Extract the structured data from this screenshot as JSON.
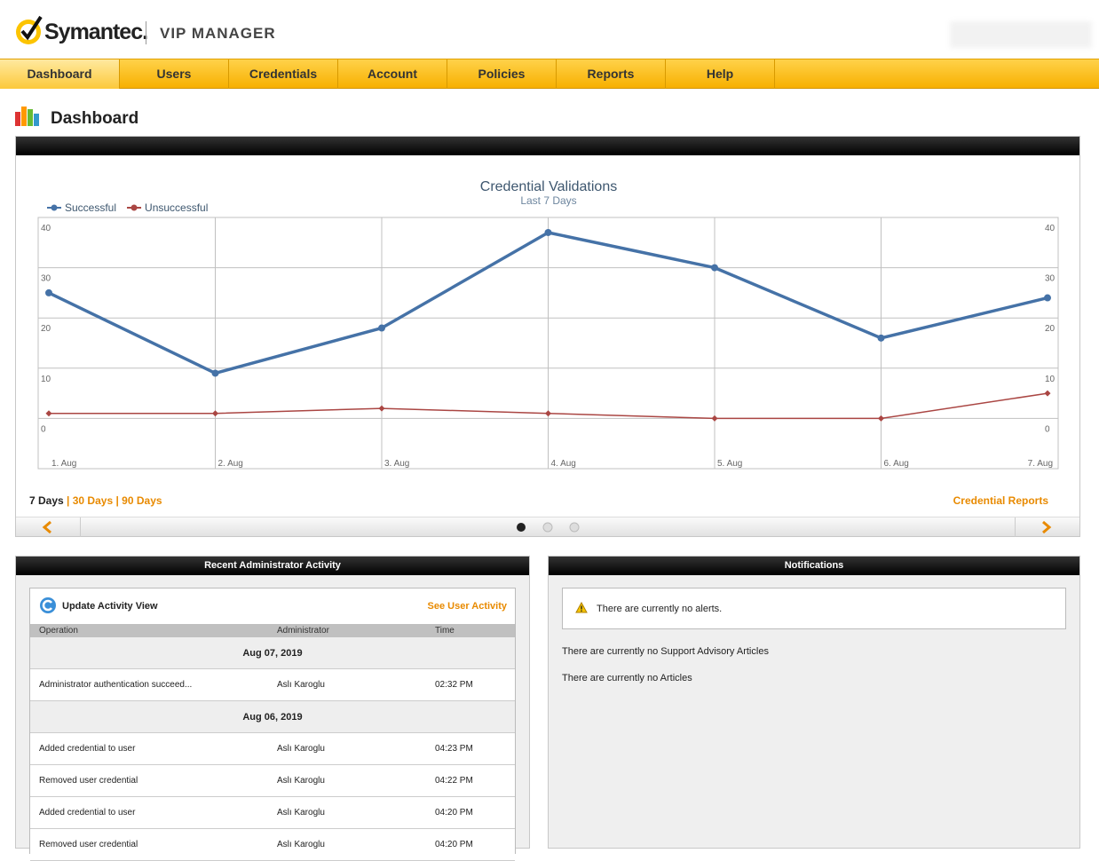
{
  "header": {
    "brand": "Symantec.",
    "product": "VIP MANAGER"
  },
  "nav": [
    "Dashboard",
    "Users",
    "Credentials",
    "Account",
    "Policies",
    "Reports",
    "Help"
  ],
  "page_title": "Dashboard",
  "chart_data": {
    "type": "line",
    "title": "Credential Validations",
    "subtitle": "Last 7 Days",
    "categories": [
      "1. Aug",
      "2. Aug",
      "3. Aug",
      "4. Aug",
      "5. Aug",
      "6. Aug",
      "7. Aug"
    ],
    "series": [
      {
        "name": "Successful",
        "color": "#4572a7",
        "values": [
          25,
          9,
          18,
          37,
          30,
          16,
          24
        ]
      },
      {
        "name": "Unsuccessful",
        "color": "#aa4643",
        "values": [
          1,
          1,
          2,
          1,
          0,
          0,
          5
        ]
      }
    ],
    "ylim": [
      -10,
      40
    ],
    "yticks": [
      0,
      10,
      20,
      30,
      40
    ],
    "grid": true,
    "legend": "top-left"
  },
  "range_links": [
    "7 Days",
    "30 Days",
    "90 Days"
  ],
  "range_separator": "|",
  "credential_reports": "Credential Reports",
  "activity": {
    "title": "Recent Administrator Activity",
    "update": "Update Activity View",
    "see_user": "See User Activity",
    "columns": [
      "Operation",
      "Administrator",
      "Time"
    ],
    "groups": [
      {
        "date": "Aug 07, 2019",
        "rows": [
          [
            "Administrator authentication succeed...",
            "Aslı Karoglu",
            "02:32 PM"
          ]
        ]
      },
      {
        "date": "Aug 06, 2019",
        "rows": [
          [
            "Added credential to user",
            "Aslı Karoglu",
            "04:23 PM"
          ],
          [
            "Removed user credential",
            "Aslı Karoglu",
            "04:22 PM"
          ],
          [
            "Added credential to user",
            "Aslı Karoglu",
            "04:20 PM"
          ],
          [
            "Removed user credential",
            "Aslı Karoglu",
            "04:20 PM"
          ]
        ]
      }
    ]
  },
  "notifications": {
    "title": "Notifications",
    "alert": "There are currently no alerts.",
    "messages": [
      "There are currently no Support Advisory Articles",
      "There are currently no Articles"
    ]
  }
}
